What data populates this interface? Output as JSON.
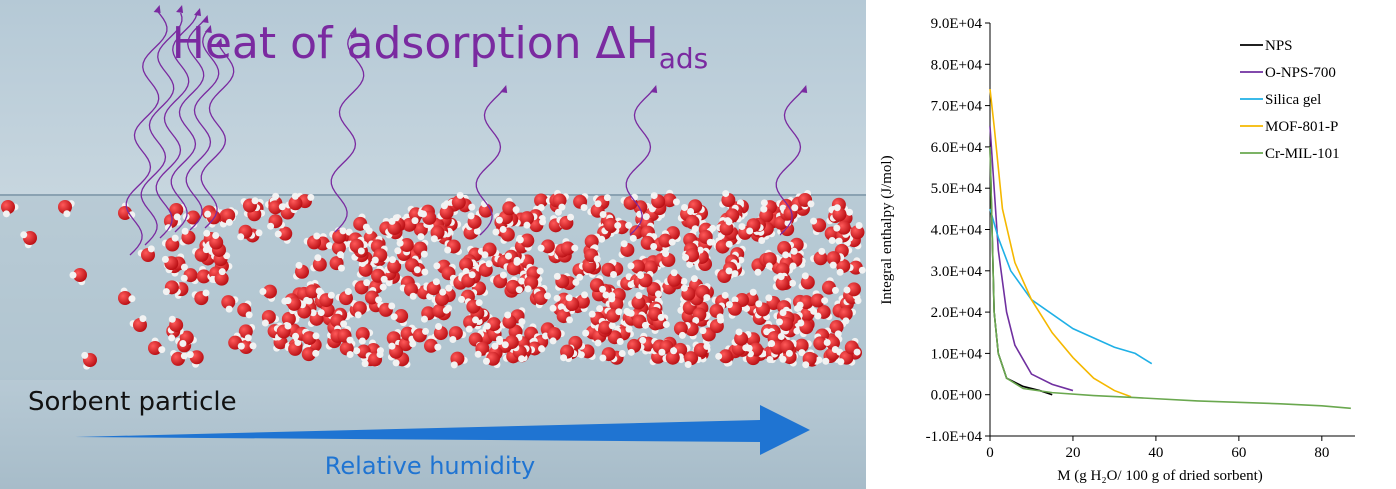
{
  "left_panel": {
    "title": "Heat of adsorption ΔH",
    "title_subscript": "ads",
    "particle_label": "Sorbent particle",
    "arrow_label": "Relative humidity"
  },
  "chart_data": {
    "type": "line",
    "x_label": "M (g H₂O/ 100 g of dried sorbent)",
    "y_label": "Integral enthalpy (J/mol)",
    "xlim": [
      0,
      88
    ],
    "xticks": [
      0,
      20,
      40,
      60,
      80
    ],
    "ylim": [
      -10000,
      90000
    ],
    "yticks": [
      {
        "value": -10000,
        "label": "-1.0E+04"
      },
      {
        "value": 0,
        "label": "0.0E+00"
      },
      {
        "value": 10000,
        "label": "1.0E+04"
      },
      {
        "value": 20000,
        "label": "2.0E+04"
      },
      {
        "value": 30000,
        "label": "3.0E+04"
      },
      {
        "value": 40000,
        "label": "4.0E+04"
      },
      {
        "value": 50000,
        "label": "5.0E+04"
      },
      {
        "value": 60000,
        "label": "6.0E+04"
      },
      {
        "value": 70000,
        "label": "7.0E+04"
      },
      {
        "value": 80000,
        "label": "8.0E+04"
      },
      {
        "value": 90000,
        "label": "9.0E+04"
      }
    ],
    "legend": "top-right",
    "series": [
      {
        "name": "NPS",
        "color": "#000000",
        "x": [
          0,
          1,
          2,
          4,
          8,
          12,
          15
        ],
        "values": [
          60000,
          20000,
          10000,
          4000,
          2000,
          1000,
          0
        ]
      },
      {
        "name": "O-NPS-700",
        "color": "#7030a0",
        "x": [
          0,
          2,
          4,
          6,
          10,
          15,
          20
        ],
        "values": [
          65000,
          35000,
          20000,
          12000,
          5000,
          2500,
          1000
        ]
      },
      {
        "name": "Silica gel",
        "color": "#1fb0e6",
        "x": [
          0,
          2,
          5,
          10,
          20,
          30,
          35,
          39
        ],
        "values": [
          45000,
          38000,
          30000,
          23000,
          16000,
          11500,
          10000,
          7500
        ]
      },
      {
        "name": "MOF-801-P",
        "color": "#f5b800",
        "x": [
          0,
          1,
          3,
          6,
          10,
          15,
          20,
          25,
          30,
          34
        ],
        "values": [
          74000,
          65000,
          45000,
          32000,
          23000,
          15000,
          9000,
          4000,
          1000,
          -500
        ]
      },
      {
        "name": "Cr-MIL-101",
        "color": "#6aa84f",
        "x": [
          0,
          1,
          2,
          4,
          8,
          15,
          25,
          35,
          50,
          70,
          80,
          87
        ],
        "values": [
          60000,
          20000,
          10000,
          4000,
          1500,
          500,
          -200,
          -700,
          -1500,
          -2200,
          -2700,
          -3300
        ]
      }
    ]
  }
}
